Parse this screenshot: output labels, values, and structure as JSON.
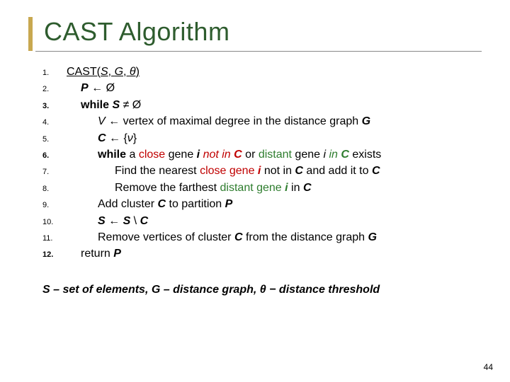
{
  "title": "CAST Algorithm",
  "accent_color": "#c8a850",
  "title_color": "#2e5c2e",
  "lines": [
    {
      "num": "1.",
      "bold_num": false,
      "indent": 0,
      "html": "<span class='und'>CAST(<span class='ital'>S</span>, <span class='ital'>G</span>, <span class='ital'>θ</span>)</span>"
    },
    {
      "num": "2.",
      "bold_num": false,
      "indent": 1,
      "html": "<span class='bold ital'>P</span> ← Ø"
    },
    {
      "num": "3.",
      "bold_num": true,
      "indent": 1,
      "html": "<span class='bold'>while <span class='ital'>S</span></span> ≠ Ø"
    },
    {
      "num": "4.",
      "bold_num": false,
      "indent": 2,
      "html": "<span class='ital'>V</span> ← vertex of maximal degree in the distance graph <span class='bold ital'>G</span>"
    },
    {
      "num": "5.",
      "bold_num": false,
      "indent": 2,
      "html": "<span class='bold ital'>C</span> ← {<span class='ital'>ν</span>}"
    },
    {
      "num": "6.",
      "bold_num": true,
      "indent": 2,
      "html": "<span class='bold'>while</span> a <span class='red'>close</span> gene <span class='bold ital'>i</span>  <span class='red ital'>not in <span class='bold'>C</span></span> or <span class='green'>distant</span> gene <span class='ital'>i</span> <span class='green ital'>in <span class='bold'>C</span></span> exists"
    },
    {
      "num": "7.",
      "bold_num": false,
      "indent": 3,
      "html": "Find the nearest <span class='red'>close gene <span class='bold ital'>i</span></span> not in <span class='bold ital'>C</span> and add it to <span class='bold ital'>C</span>"
    },
    {
      "num": "8.",
      "bold_num": false,
      "indent": 3,
      "html": "Remove the farthest <span class='green'>distant gene <span class='bold ital'>i</span></span> in <span class='bold ital'>C</span>"
    },
    {
      "num": "9.",
      "bold_num": false,
      "indent": 2,
      "html": "Add cluster <span class='bold ital'>C</span> to partition <span class='bold ital'>P</span>"
    },
    {
      "num": "10.",
      "bold_num": false,
      "indent": 2,
      "html": "<span class='bold ital'>S</span> ← <span class='bold ital'>S</span> \\ <span class='bold ital'>C</span>"
    },
    {
      "num": "11.",
      "bold_num": false,
      "indent": 2,
      "html": "Remove vertices of cluster <span class='bold ital'>C</span> from the distance graph <span class='bold ital'>G</span>"
    },
    {
      "num": "12.",
      "bold_num": true,
      "indent": 1,
      "html": "return <span class='bold ital'>P</span>"
    }
  ],
  "footer": "S – set of elements, G – distance graph, θ − distance threshold",
  "page_number": "44"
}
